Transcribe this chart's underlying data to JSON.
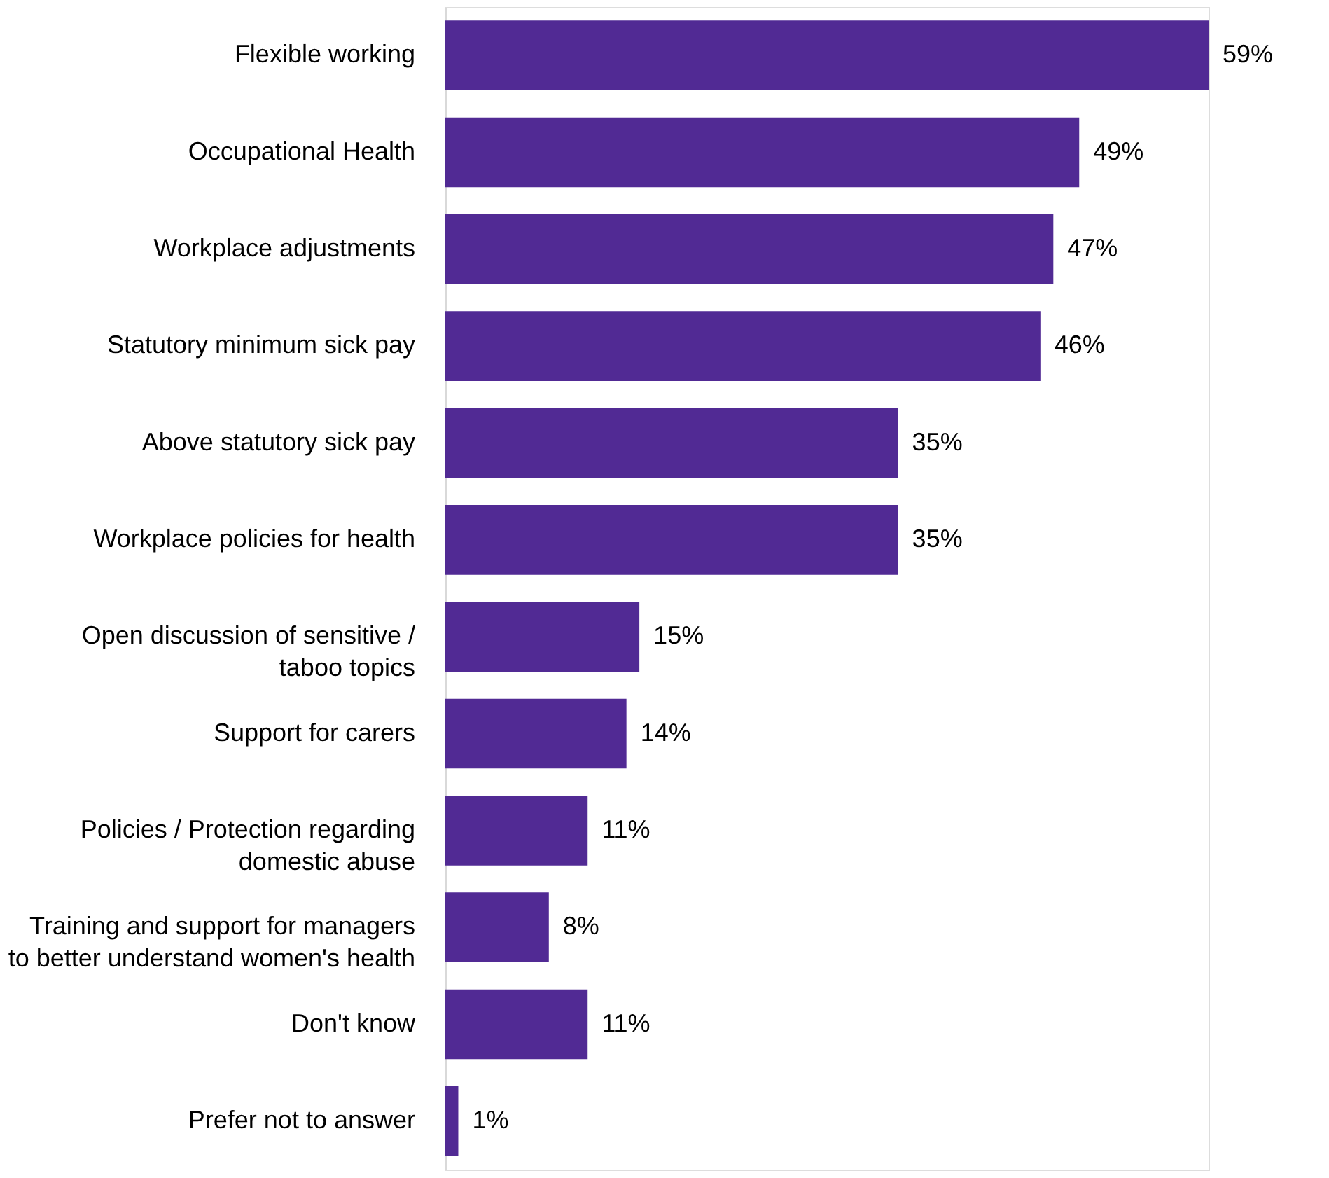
{
  "chart_data": {
    "type": "bar",
    "orientation": "horizontal",
    "color": "#512a94",
    "categories": [
      "Flexible working",
      "Occupational Health",
      "Workplace adjustments",
      "Statutory minimum sick pay",
      "Above statutory sick pay",
      "Workplace policies for health",
      "Open discussion of sensitive /\ntaboo topics",
      "Support for carers",
      "Policies / Protection regarding\ndomestic abuse",
      "Training and support for managers\nto better understand women's health",
      "Don't know",
      "Prefer not to answer"
    ],
    "values": [
      59,
      49,
      47,
      46,
      35,
      35,
      15,
      14,
      11,
      8,
      11,
      1
    ],
    "value_labels": [
      "59%",
      "49%",
      "47%",
      "46%",
      "35%",
      "35%",
      "15%",
      "14%",
      "11%",
      "8%",
      "11%",
      "1%"
    ]
  }
}
